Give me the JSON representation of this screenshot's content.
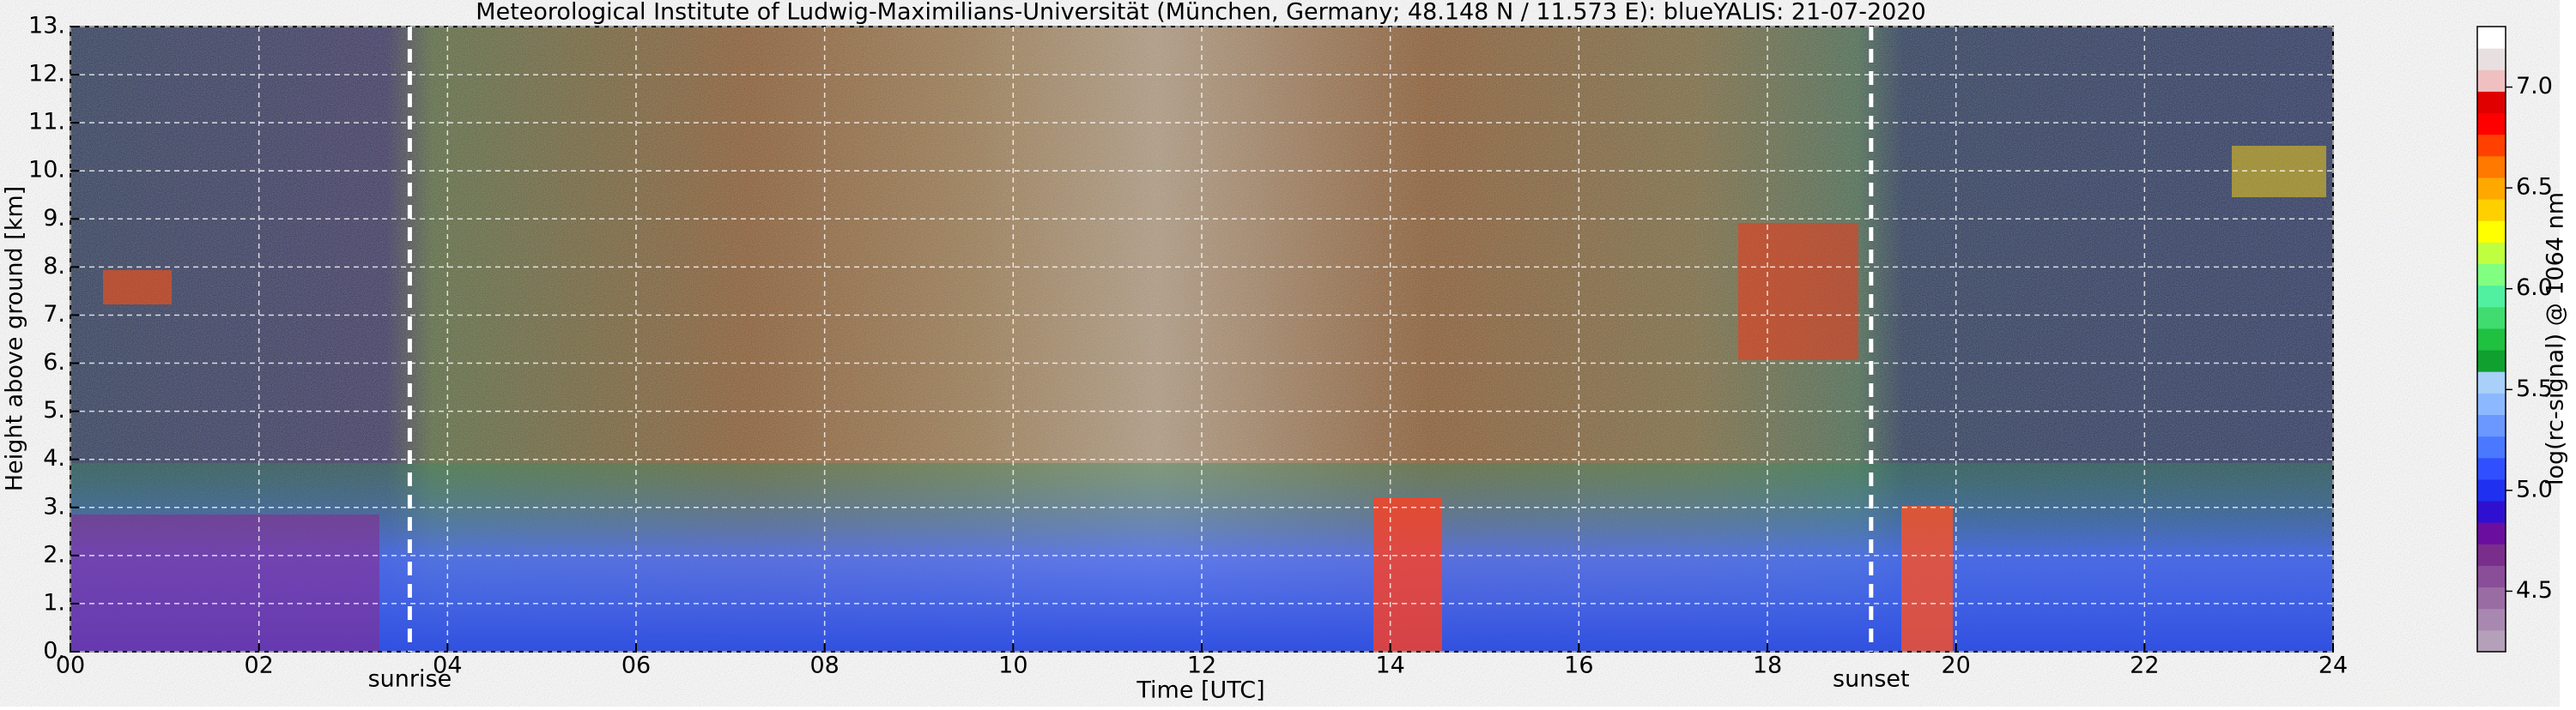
{
  "chart_data": {
    "type": "heatmap",
    "title": "Meteorological Institute of Ludwig-Maximilians-Universität (München, Germany; 48.148 N / 11.573 E):     blueYALIS: 21-07-2020",
    "x_label": "Time [UTC]",
    "y_label": "Height above ground [km]",
    "xlim": [
      0,
      24
    ],
    "ylim": [
      0,
      13
    ],
    "xticks": [
      {
        "value": 0,
        "label": "00"
      },
      {
        "value": 2,
        "label": "02"
      },
      {
        "value": 4,
        "label": "04"
      },
      {
        "value": 6,
        "label": "06"
      },
      {
        "value": 8,
        "label": "08"
      },
      {
        "value": 10,
        "label": "10"
      },
      {
        "value": 12,
        "label": "12"
      },
      {
        "value": 14,
        "label": "14"
      },
      {
        "value": 16,
        "label": "16"
      },
      {
        "value": 18,
        "label": "18"
      },
      {
        "value": 20,
        "label": "20"
      },
      {
        "value": 22,
        "label": "22"
      },
      {
        "value": 24,
        "label": "24"
      }
    ],
    "yticks": [
      {
        "value": 0,
        "label": "0."
      },
      {
        "value": 1,
        "label": "1."
      },
      {
        "value": 2,
        "label": "2."
      },
      {
        "value": 3,
        "label": "3."
      },
      {
        "value": 4,
        "label": "4."
      },
      {
        "value": 5,
        "label": "5."
      },
      {
        "value": 6,
        "label": "6."
      },
      {
        "value": 7,
        "label": "7."
      },
      {
        "value": 8,
        "label": "8."
      },
      {
        "value": 9,
        "label": "9."
      },
      {
        "value": 10,
        "label": "10."
      },
      {
        "value": 11,
        "label": "11."
      },
      {
        "value": 12,
        "label": "12."
      },
      {
        "value": 13,
        "label": "13."
      }
    ],
    "grid": true,
    "annotations": [
      {
        "text": "sunrise",
        "x": 3.6
      },
      {
        "text": "sunset",
        "x": 19.1
      }
    ],
    "colorbar": {
      "label": "log(rc-signal) @ 1064 nm",
      "lim": [
        4.2,
        7.3
      ],
      "ticks": [
        4.5,
        {
          "value": 5,
          "label": "5.0"
        },
        5.5,
        {
          "value": 6,
          "label": "6.0"
        },
        6.5,
        {
          "value": 7,
          "label": "7.0"
        }
      ],
      "colors": [
        "#b4a0b8",
        "#a888b0",
        "#9a6ca4",
        "#8a4e98",
        "#7a2e8c",
        "#6a0ea0",
        "#3010d0",
        "#2030f0",
        "#3050ff",
        "#4a78ff",
        "#6a98ff",
        "#8cb8ff",
        "#a8d0f8",
        "#10a030",
        "#20c040",
        "#40dc70",
        "#50f0a0",
        "#80ff80",
        "#c0ff40",
        "#ffff00",
        "#ffd000",
        "#ffa800",
        "#ff7800",
        "#ff4000",
        "#ff0000",
        "#e00000",
        "#f0c0c0",
        "#e8e0e0",
        "#ffffff"
      ]
    }
  }
}
